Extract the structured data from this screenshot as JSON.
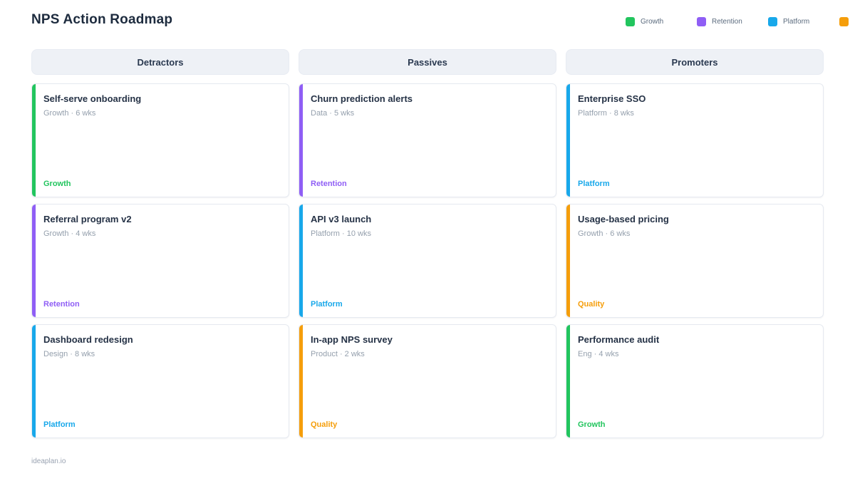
{
  "header": {
    "title": "NPS Action Roadmap",
    "legend": [
      {
        "label": "Growth",
        "color": "#22c55e"
      },
      {
        "label": "Retention",
        "color": "#8f5ef5"
      },
      {
        "label": "Platform",
        "color": "#18a8ea"
      },
      {
        "label": "",
        "color": "#f59e0b"
      }
    ]
  },
  "board": {
    "columns": [
      {
        "title": "Detractors",
        "cards": [
          {
            "title": "Self-serve onboarding",
            "meta": "Growth · 6 wks",
            "tag": "Growth",
            "color": "#22c55e"
          },
          {
            "title": "Referral program v2",
            "meta": "Growth · 4 wks",
            "tag": "Retention",
            "color": "#8f5ef5"
          },
          {
            "title": "Dashboard redesign",
            "meta": "Design · 8 wks",
            "tag": "Platform",
            "color": "#18a8ea"
          }
        ]
      },
      {
        "title": "Passives",
        "cards": [
          {
            "title": "Churn prediction alerts",
            "meta": "Data · 5 wks",
            "tag": "Retention",
            "color": "#8f5ef5"
          },
          {
            "title": "API v3 launch",
            "meta": "Platform · 10 wks",
            "tag": "Platform",
            "color": "#18a8ea"
          },
          {
            "title": "In-app NPS survey",
            "meta": "Product · 2 wks",
            "tag": "Quality",
            "color": "#f59e0b"
          }
        ]
      },
      {
        "title": "Promoters",
        "cards": [
          {
            "title": "Enterprise SSO",
            "meta": "Platform · 8 wks",
            "tag": "Platform",
            "color": "#18a8ea"
          },
          {
            "title": "Usage-based pricing",
            "meta": "Growth · 6 wks",
            "tag": "Quality",
            "color": "#f59e0b"
          },
          {
            "title": "Performance audit",
            "meta": "Eng · 4 wks",
            "tag": "Growth",
            "color": "#22c55e"
          }
        ]
      }
    ]
  },
  "footer": {
    "brand": "ideaplan.io"
  }
}
